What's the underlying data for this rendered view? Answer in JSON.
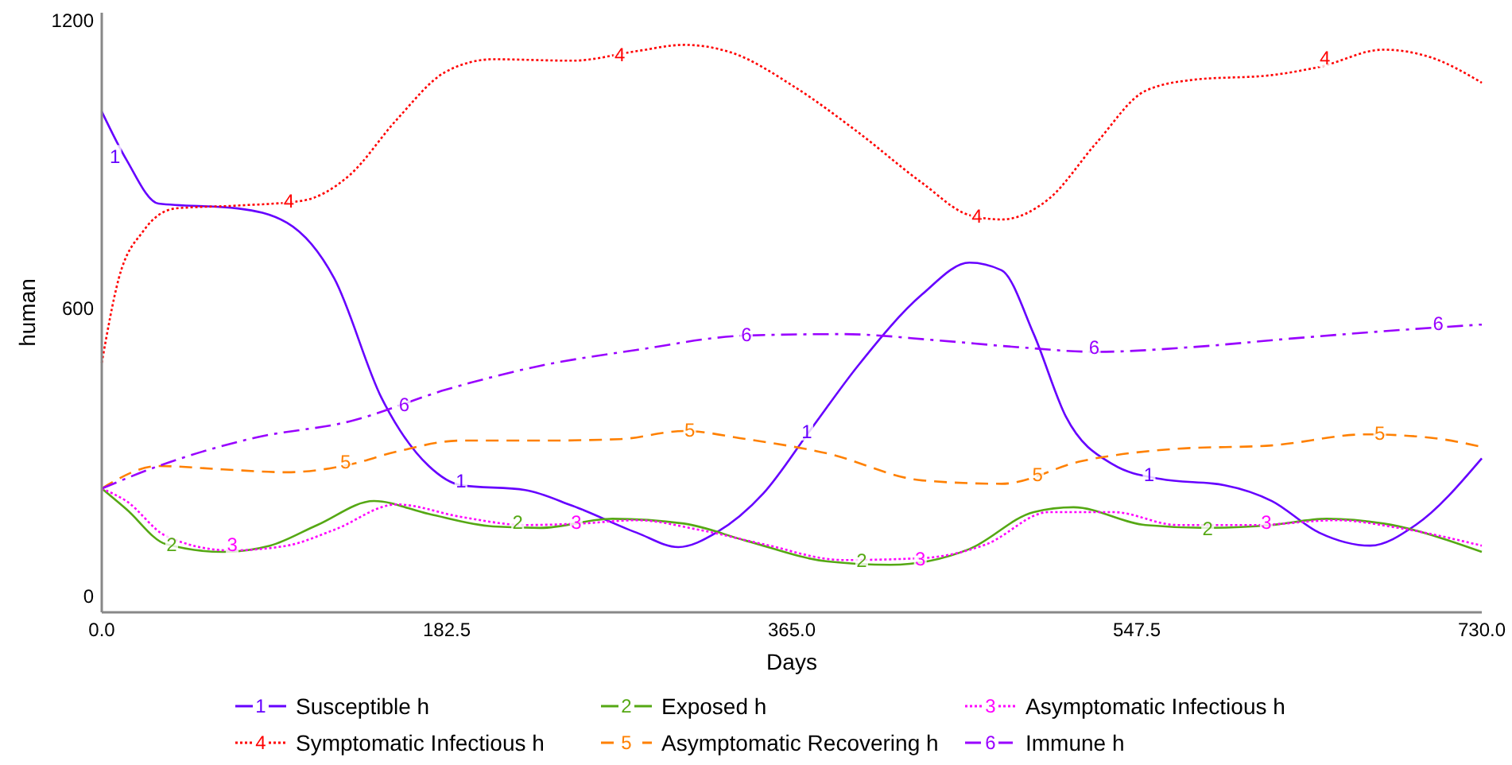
{
  "chart_data": {
    "type": "line",
    "xlabel": "Days",
    "ylabel": "human",
    "xlim": [
      0,
      730
    ],
    "xticks": [
      {
        "value": 0,
        "label": "0.0"
      },
      {
        "value": 182.5,
        "label": "182.5"
      },
      {
        "value": 365,
        "label": "365.0"
      },
      {
        "value": 547.5,
        "label": "547.5"
      },
      {
        "value": 730,
        "label": "730.0"
      }
    ],
    "ylim": [
      -33,
      1217
    ],
    "yticks": [
      0,
      600,
      1200
    ],
    "grid": false,
    "legend": "bottom",
    "marker": "none",
    "series": [
      {
        "name": "Susceptible h",
        "color": "#6600ff",
        "line_style": "solid",
        "x": [
          0,
          13,
          30,
          72,
          98,
          123,
          148,
          173,
          190,
          224,
          249,
          283,
          305,
          325,
          350,
          375,
          400,
          434,
          459,
          476,
          493,
          510,
          535,
          560,
          594,
          619,
          644,
          671,
          695,
          730
        ],
        "values": [
          1011,
          911,
          819,
          809,
          779,
          663,
          414,
          272,
          232,
          222,
          189,
          133,
          103,
          133,
          215,
          348,
          481,
          630,
          696,
          680,
          547,
          375,
          275,
          245,
          232,
          199,
          133,
          106,
          149,
          288
        ]
      },
      {
        "name": "Exposed h",
        "color": "#55a814",
        "line_style": "solid",
        "x": [
          0,
          13,
          34,
          64,
          89,
          114,
          144,
          173,
          207,
          232,
          270,
          308,
          341,
          384,
          417,
          459,
          493,
          514,
          552,
          585,
          619,
          648,
          678,
          730
        ],
        "values": [
          225,
          182,
          109,
          93,
          106,
          149,
          199,
          172,
          146,
          143,
          162,
          152,
          116,
          73,
          66,
          99,
          176,
          186,
          149,
          143,
          149,
          162,
          152,
          93
        ]
      },
      {
        "name": "Asymptomatic Infectious h",
        "color": "#ff00ff",
        "line_style": "dotted",
        "x": [
          0,
          13,
          34,
          68,
          98,
          123,
          156,
          190,
          224,
          253,
          283,
          316,
          350,
          392,
          434,
          468,
          501,
          535,
          569,
          610,
          653,
          686,
          730
        ],
        "values": [
          225,
          199,
          126,
          96,
          106,
          139,
          192,
          166,
          149,
          152,
          159,
          139,
          109,
          76,
          80,
          109,
          176,
          176,
          149,
          149,
          159,
          143,
          106
        ]
      },
      {
        "name": "Symptomatic Infectious h",
        "color": "#ff0000",
        "line_style": "dotted",
        "x": [
          0,
          9,
          22,
          39,
          72,
          106,
          131,
          156,
          182,
          207,
          249,
          283,
          308,
          333,
          367,
          400,
          434,
          459,
          476,
          501,
          526,
          552,
          577,
          619,
          644,
          678,
          703,
          730
        ],
        "values": [
          487,
          663,
          762,
          809,
          815,
          825,
          878,
          994,
          1094,
          1120,
          1117,
          1137,
          1150,
          1134,
          1061,
          968,
          862,
          795,
          786,
          829,
          945,
          1054,
          1077,
          1087,
          1104,
          1140,
          1124,
          1071
        ]
      },
      {
        "name": "Asymptomatic Recovering h",
        "color": "#ff8000",
        "line_style": "dashed",
        "x": [
          0,
          30,
          64,
          98,
          131,
          156,
          190,
          232,
          274,
          308,
          341,
          384,
          434,
          476,
          518,
          569,
          619,
          669,
          703,
          730
        ],
        "values": [
          225,
          272,
          265,
          259,
          275,
          302,
          325,
          325,
          328,
          345,
          328,
          298,
          242,
          235,
          282,
          308,
          315,
          338,
          331,
          312
        ]
      },
      {
        "name": "Immune h",
        "color": "#9900ff",
        "line_style": "dashdot",
        "x": [
          0,
          30,
          81,
          131,
          182,
          232,
          283,
          341,
          392,
          442,
          484,
          526,
          577,
          627,
          678,
          730
        ],
        "values": [
          225,
          272,
          331,
          365,
          431,
          481,
          514,
          544,
          547,
          534,
          520,
          510,
          520,
          537,
          553,
          567
        ]
      }
    ],
    "annotations": [
      {
        "text": "1",
        "x": 7,
        "y": 918
      },
      {
        "text": "1",
        "x": 190,
        "y": 242
      },
      {
        "text": "1",
        "x": 373,
        "y": 345
      },
      {
        "text": "1",
        "x": 554,
        "y": 255
      },
      {
        "text": "2",
        "x": 37,
        "y": 109
      },
      {
        "text": "2",
        "x": 220,
        "y": 156
      },
      {
        "text": "2",
        "x": 402,
        "y": 76
      },
      {
        "text": "2",
        "x": 585,
        "y": 143
      },
      {
        "text": "3",
        "x": 69,
        "y": 109
      },
      {
        "text": "3",
        "x": 251,
        "y": 156
      },
      {
        "text": "3",
        "x": 433,
        "y": 80
      },
      {
        "text": "3",
        "x": 616,
        "y": 156
      },
      {
        "text": "4",
        "x": 99,
        "y": 825
      },
      {
        "text": "4",
        "x": 274,
        "y": 1131
      },
      {
        "text": "4",
        "x": 463,
        "y": 795
      },
      {
        "text": "4",
        "x": 647,
        "y": 1124
      },
      {
        "text": "5",
        "x": 129,
        "y": 282
      },
      {
        "text": "5",
        "x": 311,
        "y": 348
      },
      {
        "text": "5",
        "x": 495,
        "y": 255
      },
      {
        "text": "5",
        "x": 676,
        "y": 341
      },
      {
        "text": "6",
        "x": 160,
        "y": 401
      },
      {
        "text": "6",
        "x": 341,
        "y": 547
      },
      {
        "text": "6",
        "x": 525,
        "y": 520
      },
      {
        "text": "6",
        "x": 707,
        "y": 570
      }
    ]
  }
}
